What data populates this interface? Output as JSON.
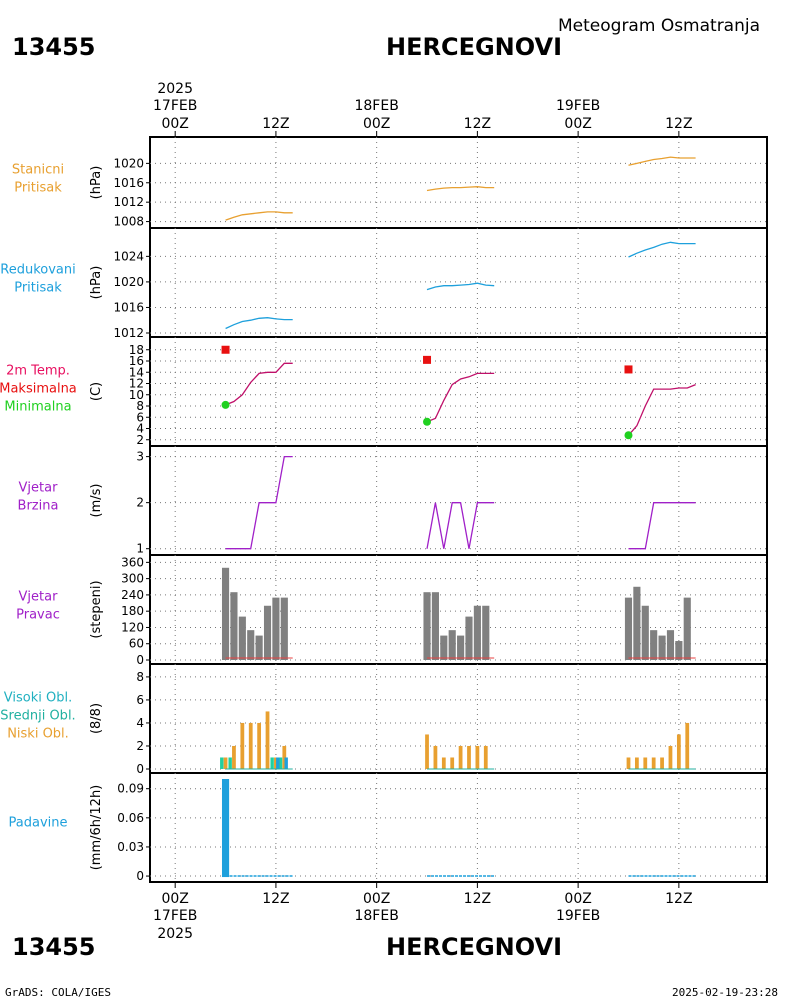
{
  "header": {
    "station_id": "13455",
    "station_name": "HERCEGNOVI",
    "product": "Meteogram  Osmatranja",
    "start_year": "2025"
  },
  "footer": {
    "credit": "GrADS: COLA/IGES",
    "timestamp": "2025-02-19-23:28"
  },
  "time_axis": {
    "top_labels": [
      {
        "t": 0,
        "hour": "00Z",
        "date": "17FEB",
        "year": "2025"
      },
      {
        "t": 12,
        "hour": "12Z"
      },
      {
        "t": 24,
        "hour": "00Z",
        "date": "18FEB"
      },
      {
        "t": 36,
        "hour": "12Z"
      },
      {
        "t": 48,
        "hour": "00Z",
        "date": "19FEB"
      },
      {
        "t": 60,
        "hour": "12Z"
      }
    ],
    "range_hours": [
      -3,
      70.5
    ]
  },
  "panels_text": {
    "p1": {
      "lines": [
        "Stanicni",
        "Pritisak"
      ],
      "unit": "(hPa)"
    },
    "p2": {
      "lines": [
        "Redukovani",
        "Pritisak"
      ],
      "unit": "(hPa)"
    },
    "p3": {
      "lines": [
        "2m Temp.",
        "Maksimalna",
        "Minimalna"
      ],
      "unit": "(C)"
    },
    "p4": {
      "lines": [
        "Vjetar",
        "Brzina"
      ],
      "unit": "(m/s)"
    },
    "p5": {
      "lines": [
        "Vjetar",
        "Pravac"
      ],
      "unit": "(stepeni)"
    },
    "p6": {
      "lines": [
        "Visoki Obl.",
        "Srednji Obl.",
        "Niski Obl."
      ],
      "unit": "(8/8)"
    },
    "p7": {
      "lines": [
        "Padavine"
      ],
      "unit": "(mm/6h/12h)"
    }
  },
  "chart_data": [
    {
      "id": "p1",
      "type": "line",
      "ylim": [
        1007.5,
        1024.2
      ],
      "yticks": [
        1008,
        1012,
        1016,
        1020
      ],
      "color": "#E8A030",
      "series": [
        {
          "x": [
            6,
            7,
            8,
            9,
            10,
            11,
            12,
            13,
            14
          ],
          "y": [
            1008.3,
            1008.9,
            1009.4,
            1009.6,
            1009.8,
            1010.0,
            1010.0,
            1009.8,
            1009.8
          ]
        },
        {
          "x": [
            30,
            31,
            32,
            33,
            34,
            35,
            36,
            37,
            38
          ],
          "y": [
            1014.4,
            1014.7,
            1014.9,
            1015.0,
            1015.0,
            1015.1,
            1015.2,
            1015.0,
            1015.0
          ]
        },
        {
          "x": [
            54,
            55,
            56,
            57,
            58,
            59,
            60,
            61,
            62
          ],
          "y": [
            1019.6,
            1020.0,
            1020.4,
            1020.8,
            1021.0,
            1021.3,
            1021.1,
            1021.1,
            1021.1
          ]
        }
      ]
    },
    {
      "id": "p2",
      "type": "line",
      "ylim": [
        1012,
        1027.5
      ],
      "yticks": [
        1012,
        1016,
        1020,
        1024
      ],
      "color": "#1EA0DC",
      "series": [
        {
          "x": [
            6,
            7,
            8,
            9,
            10,
            11,
            12,
            13,
            14
          ],
          "y": [
            1012.7,
            1013.3,
            1013.8,
            1014.0,
            1014.3,
            1014.4,
            1014.2,
            1014.1,
            1014.1
          ]
        },
        {
          "x": [
            30,
            31,
            32,
            33,
            34,
            35,
            36,
            37,
            38
          ],
          "y": [
            1018.8,
            1019.2,
            1019.4,
            1019.4,
            1019.5,
            1019.6,
            1019.8,
            1019.5,
            1019.4
          ]
        },
        {
          "x": [
            54,
            55,
            56,
            57,
            58,
            59,
            60,
            61,
            62
          ],
          "y": [
            1023.9,
            1024.5,
            1025.0,
            1025.4,
            1025.9,
            1026.2,
            1026.0,
            1026.0,
            1026.0
          ]
        }
      ]
    },
    {
      "id": "p3",
      "type": "line",
      "ylim": [
        1.6,
        19.2
      ],
      "yticks": [
        2,
        4,
        6,
        8,
        10,
        12,
        14,
        16,
        18
      ],
      "color": "#C0106A",
      "series": [
        {
          "x": [
            6,
            7,
            8,
            9,
            10,
            11,
            12,
            13,
            14
          ],
          "y": [
            8.2,
            8.8,
            10.0,
            12.2,
            13.8,
            14.0,
            14.0,
            15.6,
            15.6
          ]
        },
        {
          "x": [
            30,
            31,
            32,
            33,
            34,
            35,
            36,
            37,
            38
          ],
          "y": [
            5.2,
            5.8,
            9.0,
            11.8,
            12.8,
            13.2,
            13.8,
            13.8,
            13.8
          ]
        },
        {
          "x": [
            54,
            55,
            56,
            57,
            58,
            59,
            60,
            61,
            62
          ],
          "y": [
            2.8,
            4.5,
            8.0,
            11.0,
            11.0,
            11.0,
            11.2,
            11.2,
            11.8
          ]
        }
      ],
      "max_points": [
        {
          "x": 6,
          "y": 18.0
        },
        {
          "x": 30,
          "y": 16.2
        },
        {
          "x": 54,
          "y": 14.5
        }
      ],
      "min_points": [
        {
          "x": 6,
          "y": 8.2
        },
        {
          "x": 30,
          "y": 5.2
        },
        {
          "x": 54,
          "y": 2.8
        }
      ],
      "max_color": "#E81010",
      "min_color": "#20D020"
    },
    {
      "id": "p4",
      "type": "line",
      "ylim": [
        0.95,
        3.1
      ],
      "yticks": [
        1,
        2,
        3
      ],
      "color": "#A020C8",
      "series": [
        {
          "x": [
            6,
            7,
            8,
            9,
            10,
            11,
            12,
            13,
            14
          ],
          "y": [
            1,
            1,
            1,
            1,
            2,
            2,
            2,
            3,
            3
          ]
        },
        {
          "x": [
            30,
            31,
            32,
            33,
            34,
            35,
            36,
            37,
            38
          ],
          "y": [
            1,
            2,
            1,
            2,
            2,
            1,
            2,
            2,
            2
          ]
        },
        {
          "x": [
            54,
            55,
            56,
            57,
            58,
            59,
            60,
            61,
            62
          ],
          "y": [
            1,
            1,
            1,
            2,
            2,
            2,
            2,
            2,
            2
          ]
        }
      ]
    },
    {
      "id": "p5",
      "type": "bar",
      "ylim": [
        0,
        365
      ],
      "yticks": [
        0,
        60,
        120,
        180,
        240,
        300,
        360
      ],
      "color": "#808080",
      "values": [
        {
          "x": 6,
          "y": 340
        },
        {
          "x": 7,
          "y": 250
        },
        {
          "x": 8,
          "y": 160
        },
        {
          "x": 9,
          "y": 110
        },
        {
          "x": 10,
          "y": 90
        },
        {
          "x": 11,
          "y": 200
        },
        {
          "x": 12,
          "y": 230
        },
        {
          "x": 13,
          "y": 230
        },
        {
          "x": 30,
          "y": 250
        },
        {
          "x": 31,
          "y": 250
        },
        {
          "x": 32,
          "y": 90
        },
        {
          "x": 33,
          "y": 110
        },
        {
          "x": 34,
          "y": 90
        },
        {
          "x": 35,
          "y": 160
        },
        {
          "x": 36,
          "y": 200
        },
        {
          "x": 37,
          "y": 200
        },
        {
          "x": 54,
          "y": 230
        },
        {
          "x": 55,
          "y": 270
        },
        {
          "x": 56,
          "y": 200
        },
        {
          "x": 57,
          "y": 110
        },
        {
          "x": 58,
          "y": 90
        },
        {
          "x": 59,
          "y": 110
        },
        {
          "x": 60,
          "y": 70
        },
        {
          "x": 61,
          "y": 230
        }
      ],
      "baseline_color": "#E84040"
    },
    {
      "id": "p6",
      "type": "bar",
      "ylim": [
        0,
        8.6
      ],
      "yticks": [
        0,
        2,
        4,
        6,
        8
      ],
      "series": [
        {
          "name": "Niski Obl.",
          "color": "#E8A030",
          "x": [
            6,
            7,
            8,
            9,
            10,
            11,
            12,
            13,
            30,
            31,
            32,
            33,
            34,
            35,
            36,
            37,
            54,
            55,
            56,
            57,
            58,
            59,
            60,
            61
          ],
          "y": [
            1,
            2,
            4,
            4,
            4,
            5,
            1,
            2,
            3,
            2,
            1,
            1,
            2,
            2,
            2,
            2,
            1,
            1,
            1,
            1,
            1,
            2,
            3,
            4
          ]
        },
        {
          "name": "Srednji Obl.",
          "color": "#20D0A0",
          "x": [
            6,
            7,
            12,
            13
          ],
          "y": [
            1,
            1,
            1,
            1
          ]
        },
        {
          "name": "Visoki Obl.",
          "color": "#1EA0DC",
          "x": [
            12,
            13
          ],
          "y": [
            1,
            1
          ]
        }
      ]
    },
    {
      "id": "p7",
      "type": "bar",
      "ylim": [
        -0.002,
        0.1
      ],
      "yticks": [
        0,
        0.03,
        0.06,
        0.09
      ],
      "ytick_labels": [
        "0",
        "0.03",
        "0.06",
        "0.09"
      ],
      "color": "#1EA0DC",
      "values": [
        {
          "x": 6,
          "y": 0.1
        },
        {
          "x": 12,
          "y": 0
        },
        {
          "x": 36,
          "y": 0
        },
        {
          "x": 60,
          "y": 0
        }
      ],
      "zero_segments": [
        [
          6,
          14
        ],
        [
          30,
          38
        ],
        [
          54,
          62
        ]
      ]
    }
  ]
}
